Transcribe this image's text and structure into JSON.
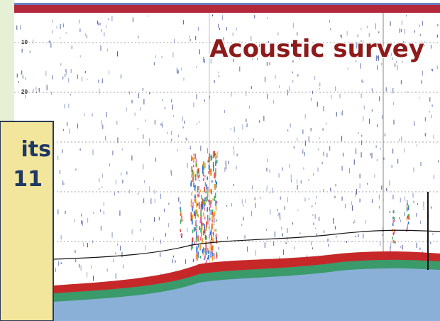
{
  "title": "Acoustic survey",
  "depth_labels": [
    "10",
    "20"
  ],
  "inset": {
    "lines": [
      "its",
      "11"
    ]
  }
}
